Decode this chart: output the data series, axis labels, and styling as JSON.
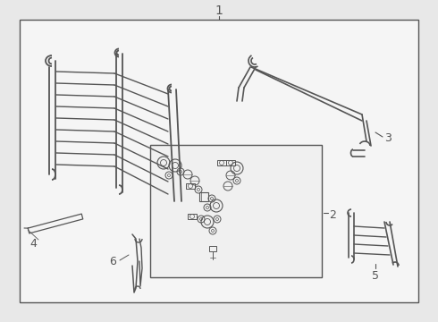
{
  "bg_color": "#e8e8e8",
  "box_color": "#f5f5f5",
  "line_color": "#555555",
  "title": "1",
  "label_2": "2",
  "label_3": "3",
  "label_4": "4",
  "label_5": "5",
  "label_6": "6"
}
